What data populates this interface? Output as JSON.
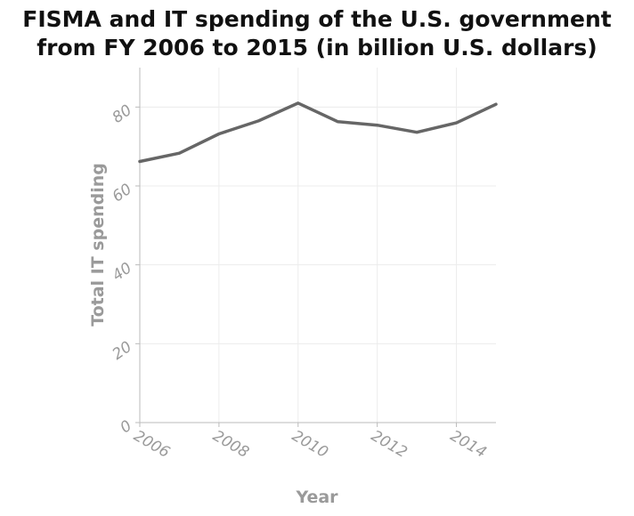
{
  "chart_data": {
    "type": "line",
    "title": "FISMA and IT spending of the U.S. government from FY 2006 to 2015 (in billion U.S. dollars)",
    "title_lines": [
      "FISMA and IT spending of the U.S. government",
      "from FY 2006 to 2015 (in billion U.S. dollars)"
    ],
    "xlabel": "Year",
    "ylabel": "Total IT spending",
    "xlim": [
      2006,
      2015
    ],
    "ylim": [
      0,
      90
    ],
    "x_ticks": [
      2006,
      2008,
      2010,
      2012,
      2014
    ],
    "y_ticks": [
      0,
      20,
      40,
      60,
      80
    ],
    "grid": true,
    "legend": "none",
    "series": [
      {
        "x": [
          2006,
          2007,
          2008,
          2009,
          2010,
          2011,
          2012,
          2013,
          2014,
          2015
        ],
        "values": [
          66.2,
          68.3,
          73.2,
          76.5,
          81.0,
          76.3,
          75.4,
          73.6,
          76.0,
          80.7
        ],
        "color": "#666666"
      }
    ]
  }
}
